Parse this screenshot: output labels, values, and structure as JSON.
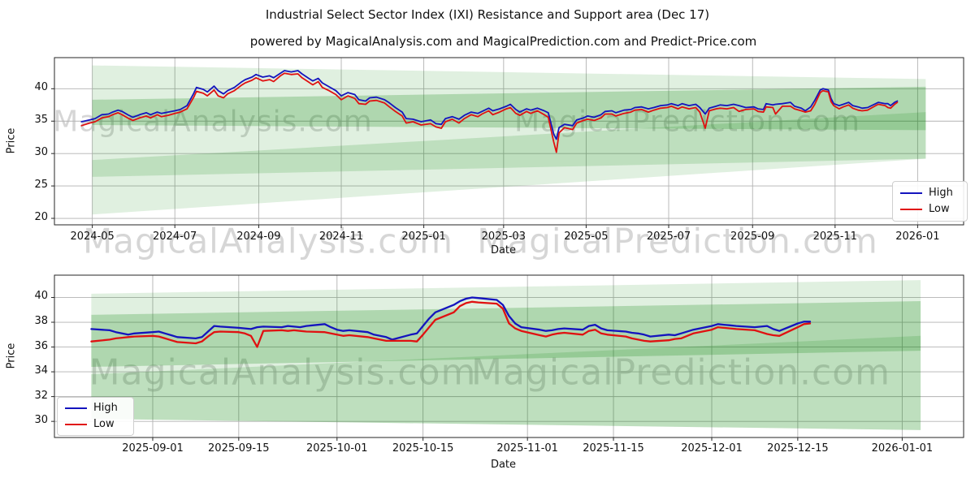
{
  "title": "Industrial Select Sector Index (IXI) Resistance and Support area (Dec 17)",
  "subtitle": "powered by MagicalAnalysis.com and MagicalPrediction.com and Predict-Price.com",
  "watermarks": {
    "analysis": "MagicalAnalysis.com",
    "prediction": "MagicalPrediction.com"
  },
  "colors": {
    "high": "#1414bE",
    "low": "#e01111",
    "band": "#008000",
    "grid": "#b2b2b2",
    "spine": "#262626",
    "watermark": "rgba(90,90,90,0.25)"
  },
  "chart_data": [
    {
      "type": "line",
      "title": "Industrial Select Sector Index (IXI) Resistance and Support area (Dec 17)",
      "xlabel": "Date",
      "ylabel": "Price",
      "legend": [
        "High",
        "Low"
      ],
      "legend_position": "center right",
      "grid": true,
      "ylim": [
        19.0,
        44.8
      ],
      "yticks": [
        20,
        25,
        30,
        35,
        40
      ],
      "xlim": [
        "2024-04-03",
        "2026-02-04"
      ],
      "xticks": [
        {
          "label": "2024-05",
          "date": "2024-05-01"
        },
        {
          "label": "2024-07",
          "date": "2024-07-01"
        },
        {
          "label": "2024-09",
          "date": "2024-09-01"
        },
        {
          "label": "2024-11",
          "date": "2024-11-01"
        },
        {
          "label": "2025-01",
          "date": "2025-01-01"
        },
        {
          "label": "2025-03",
          "date": "2025-03-01"
        },
        {
          "label": "2025-05",
          "date": "2025-05-01"
        },
        {
          "label": "2025-07",
          "date": "2025-07-01"
        },
        {
          "label": "2025-09",
          "date": "2025-09-01"
        },
        {
          "label": "2025-11",
          "date": "2025-11-01"
        },
        {
          "label": "2026-01",
          "date": "2026-01-01"
        }
      ],
      "bands": [
        {
          "x": [
            "2024-05-01",
            "2026-01-07"
          ],
          "top": [
            43.6,
            41.5
          ],
          "bottom": [
            20.6,
            29.2
          ],
          "opacity": 0.12
        },
        {
          "x": [
            "2024-05-01",
            "2026-01-07"
          ],
          "top": [
            38.3,
            40.3
          ],
          "bottom": [
            34.4,
            33.6
          ],
          "opacity": 0.22
        },
        {
          "x": [
            "2024-05-01",
            "2026-01-07"
          ],
          "top": [
            29.0,
            36.4
          ],
          "bottom": [
            26.4,
            29.2
          ],
          "opacity": 0.15
        }
      ],
      "dates": [
        "2024-04-23",
        "2024-04-29",
        "2024-05-03",
        "2024-05-08",
        "2024-05-13",
        "2024-05-16",
        "2024-05-20",
        "2024-05-23",
        "2024-05-28",
        "2024-05-31",
        "2024-06-05",
        "2024-06-10",
        "2024-06-13",
        "2024-06-18",
        "2024-06-21",
        "2024-06-26",
        "2024-07-01",
        "2024-07-05",
        "2024-07-10",
        "2024-07-15",
        "2024-07-17",
        "2024-07-22",
        "2024-07-25",
        "2024-07-30",
        "2024-08-02",
        "2024-08-06",
        "2024-08-09",
        "2024-08-14",
        "2024-08-19",
        "2024-08-22",
        "2024-08-27",
        "2024-08-30",
        "2024-09-04",
        "2024-09-09",
        "2024-09-12",
        "2024-09-17",
        "2024-09-20",
        "2024-09-25",
        "2024-09-30",
        "2024-10-03",
        "2024-10-08",
        "2024-10-11",
        "2024-10-15",
        "2024-10-18",
        "2024-10-23",
        "2024-10-28",
        "2024-11-01",
        "2024-11-06",
        "2024-11-11",
        "2024-11-14",
        "2024-11-19",
        "2024-11-22",
        "2024-11-27",
        "2024-12-03",
        "2024-12-06",
        "2024-12-11",
        "2024-12-16",
        "2024-12-19",
        "2024-12-24",
        "2024-12-30",
        "2025-01-06",
        "2025-01-10",
        "2025-01-14",
        "2025-01-17",
        "2025-01-22",
        "2025-01-27",
        "2025-01-31",
        "2025-02-05",
        "2025-02-10",
        "2025-02-13",
        "2025-02-18",
        "2025-02-21",
        "2025-02-26",
        "2025-03-03",
        "2025-03-06",
        "2025-03-10",
        "2025-03-13",
        "2025-03-18",
        "2025-03-21",
        "2025-03-26",
        "2025-03-31",
        "2025-04-03",
        "2025-04-07",
        "2025-04-09",
        "2025-04-11",
        "2025-04-15",
        "2025-04-21",
        "2025-04-24",
        "2025-04-29",
        "2025-05-02",
        "2025-05-07",
        "2025-05-12",
        "2025-05-15",
        "2025-05-20",
        "2025-05-23",
        "2025-05-29",
        "2025-06-03",
        "2025-06-06",
        "2025-06-11",
        "2025-06-16",
        "2025-06-20",
        "2025-06-25",
        "2025-06-30",
        "2025-07-03",
        "2025-07-08",
        "2025-07-11",
        "2025-07-16",
        "2025-07-21",
        "2025-07-24",
        "2025-07-28",
        "2025-07-31",
        "2025-08-05",
        "2025-08-08",
        "2025-08-13",
        "2025-08-18",
        "2025-08-22",
        "2025-08-27",
        "2025-09-02",
        "2025-09-05",
        "2025-09-09",
        "2025-09-11",
        "2025-09-16",
        "2025-09-18",
        "2025-09-23",
        "2025-09-29",
        "2025-10-02",
        "2025-10-07",
        "2025-10-10",
        "2025-10-14",
        "2025-10-17",
        "2025-10-21",
        "2025-10-23",
        "2025-10-27",
        "2025-10-29",
        "2025-10-31",
        "2025-11-04",
        "2025-11-07",
        "2025-11-11",
        "2025-11-14",
        "2025-11-18",
        "2025-11-21",
        "2025-11-25",
        "2025-12-01",
        "2025-12-03",
        "2025-12-08",
        "2025-12-10",
        "2025-12-12",
        "2025-12-15",
        "2025-12-17"
      ],
      "high": [
        34.9,
        35.2,
        35.4,
        36.0,
        36.1,
        36.4,
        36.7,
        36.5,
        35.9,
        35.6,
        36.0,
        36.3,
        36.0,
        36.4,
        36.2,
        36.4,
        36.6,
        36.8,
        37.4,
        39.3,
        40.2,
        39.9,
        39.5,
        40.4,
        39.7,
        39.2,
        39.7,
        40.2,
        41.0,
        41.4,
        41.8,
        42.2,
        41.8,
        42.0,
        41.7,
        42.4,
        42.8,
        42.6,
        42.8,
        42.3,
        41.6,
        41.2,
        41.6,
        40.9,
        40.3,
        39.7,
        38.9,
        39.4,
        39.1,
        38.3,
        38.1,
        38.6,
        38.7,
        38.3,
        37.9,
        37.1,
        36.4,
        35.4,
        35.3,
        34.9,
        35.2,
        34.6,
        34.5,
        35.4,
        35.7,
        35.3,
        35.9,
        36.4,
        36.2,
        36.5,
        37.0,
        36.6,
        36.9,
        37.3,
        37.6,
        36.8,
        36.4,
        36.9,
        36.7,
        37.0,
        36.6,
        36.3,
        33.0,
        32.2,
        34.0,
        34.5,
        34.3,
        35.2,
        35.5,
        35.8,
        35.6,
        36.0,
        36.5,
        36.6,
        36.3,
        36.7,
        36.8,
        37.1,
        37.2,
        36.9,
        37.1,
        37.4,
        37.5,
        37.7,
        37.4,
        37.7,
        37.4,
        37.6,
        37.1,
        36.1,
        37.0,
        37.3,
        37.5,
        37.4,
        37.6,
        37.4,
        37.1,
        37.2,
        36.9,
        36.8,
        37.7,
        37.5,
        37.6,
        37.7,
        37.9,
        37.3,
        37.0,
        36.6,
        37.2,
        38.2,
        39.8,
        40.0,
        39.8,
        38.5,
        37.7,
        37.4,
        37.6,
        37.9,
        37.4,
        37.2,
        37.0,
        37.1,
        37.7,
        37.9,
        37.7,
        37.7,
        37.4,
        37.9,
        38.1
      ],
      "low": [
        34.3,
        34.7,
        34.9,
        35.5,
        35.7,
        36.0,
        36.3,
        36.0,
        35.4,
        35.1,
        35.5,
        35.8,
        35.5,
        36.0,
        35.7,
        35.9,
        36.2,
        36.4,
        36.9,
        38.7,
        39.6,
        39.3,
        38.9,
        39.8,
        38.9,
        38.6,
        39.2,
        39.7,
        40.5,
        40.9,
        41.3,
        41.7,
        41.2,
        41.4,
        41.1,
        42.0,
        42.4,
        42.2,
        42.3,
        41.7,
        41.0,
        40.6,
        41.1,
        40.2,
        39.7,
        39.1,
        38.3,
        38.9,
        38.5,
        37.7,
        37.6,
        38.1,
        38.2,
        37.8,
        37.3,
        36.5,
        35.8,
        34.7,
        34.9,
        34.4,
        34.6,
        34.1,
        33.9,
        34.9,
        35.3,
        34.7,
        35.4,
        36.0,
        35.7,
        36.1,
        36.6,
        36.0,
        36.4,
        36.9,
        37.1,
        36.2,
        35.9,
        36.5,
        36.2,
        36.6,
        36.0,
        35.6,
        31.8,
        30.2,
        33.2,
        34.0,
        33.7,
        34.7,
        35.1,
        35.3,
        35.1,
        35.5,
        36.1,
        36.1,
        35.8,
        36.2,
        36.4,
        36.7,
        36.8,
        36.4,
        36.7,
        37.0,
        37.1,
        37.3,
        36.9,
        37.2,
        36.9,
        37.1,
        36.4,
        33.9,
        36.6,
        36.9,
        37.0,
        36.9,
        37.1,
        36.5,
        36.8,
        36.9,
        36.5,
        36.4,
        37.2,
        37.1,
        36.1,
        37.3,
        37.3,
        36.9,
        36.6,
        36.4,
        36.6,
        37.6,
        39.4,
        39.7,
        39.5,
        38.0,
        37.4,
        36.9,
        37.2,
        37.5,
        37.0,
        36.7,
        36.6,
        36.7,
        37.4,
        37.6,
        37.4,
        37.1,
        37.0,
        37.6,
        37.9
      ]
    },
    {
      "type": "line",
      "xlabel": "Date",
      "ylabel": "Price",
      "legend": [
        "High",
        "Low"
      ],
      "legend_position": "lower left",
      "grid": true,
      "ylim": [
        28.7,
        41.8
      ],
      "yticks": [
        30,
        32,
        34,
        36,
        38,
        40
      ],
      "xlim": [
        "2025-08-16",
        "2026-01-11"
      ],
      "xticks": [
        {
          "label": "2025-09-01",
          "date": "2025-09-01"
        },
        {
          "label": "2025-09-15",
          "date": "2025-09-15"
        },
        {
          "label": "2025-10-01",
          "date": "2025-10-01"
        },
        {
          "label": "2025-10-15",
          "date": "2025-10-15"
        },
        {
          "label": "2025-11-01",
          "date": "2025-11-01"
        },
        {
          "label": "2025-11-15",
          "date": "2025-11-15"
        },
        {
          "label": "2025-12-01",
          "date": "2025-12-01"
        },
        {
          "label": "2025-12-15",
          "date": "2025-12-15"
        },
        {
          "label": "2026-01-01",
          "date": "2026-01-01"
        }
      ],
      "bands": [
        {
          "x": [
            "2025-08-22",
            "2026-01-04"
          ],
          "top": [
            40.3,
            41.4
          ],
          "bottom": [
            30.2,
            29.3
          ],
          "opacity": 0.12
        },
        {
          "x": [
            "2025-08-22",
            "2026-01-04"
          ],
          "top": [
            38.6,
            39.7
          ],
          "bottom": [
            34.4,
            35.7
          ],
          "opacity": 0.22
        },
        {
          "x": [
            "2025-08-22",
            "2026-01-04"
          ],
          "top": [
            33.8,
            36.9
          ],
          "bottom": [
            30.2,
            29.3
          ],
          "opacity": 0.15
        }
      ],
      "dates": [
        "2025-08-22",
        "2025-08-25",
        "2025-08-26",
        "2025-08-27",
        "2025-08-28",
        "2025-08-29",
        "2025-09-01",
        "2025-09-02",
        "2025-09-03",
        "2025-09-04",
        "2025-09-05",
        "2025-09-08",
        "2025-09-09",
        "2025-09-10",
        "2025-09-11",
        "2025-09-12",
        "2025-09-15",
        "2025-09-16",
        "2025-09-17",
        "2025-09-18",
        "2025-09-19",
        "2025-09-22",
        "2025-09-23",
        "2025-09-24",
        "2025-09-25",
        "2025-09-26",
        "2025-09-29",
        "2025-09-30",
        "2025-10-01",
        "2025-10-02",
        "2025-10-03",
        "2025-10-06",
        "2025-10-07",
        "2025-10-08",
        "2025-10-09",
        "2025-10-10",
        "2025-10-13",
        "2025-10-14",
        "2025-10-15",
        "2025-10-16",
        "2025-10-17",
        "2025-10-20",
        "2025-10-21",
        "2025-10-22",
        "2025-10-23",
        "2025-10-24",
        "2025-10-27",
        "2025-10-28",
        "2025-10-29",
        "2025-10-30",
        "2025-10-31",
        "2025-11-03",
        "2025-11-04",
        "2025-11-05",
        "2025-11-06",
        "2025-11-07",
        "2025-11-10",
        "2025-11-11",
        "2025-11-12",
        "2025-11-13",
        "2025-11-14",
        "2025-11-17",
        "2025-11-18",
        "2025-11-19",
        "2025-11-20",
        "2025-11-21",
        "2025-11-24",
        "2025-11-25",
        "2025-11-26",
        "2025-11-28",
        "2025-12-01",
        "2025-12-02",
        "2025-12-03",
        "2025-12-04",
        "2025-12-05",
        "2025-12-08",
        "2025-12-09",
        "2025-12-10",
        "2025-12-11",
        "2025-12-12",
        "2025-12-15",
        "2025-12-16",
        "2025-12-17"
      ],
      "high": [
        37.45,
        37.35,
        37.2,
        37.1,
        37.0,
        37.1,
        37.2,
        37.25,
        37.1,
        36.95,
        36.8,
        36.7,
        36.8,
        37.25,
        37.7,
        37.65,
        37.55,
        37.5,
        37.45,
        37.6,
        37.65,
        37.6,
        37.7,
        37.65,
        37.6,
        37.7,
        37.85,
        37.6,
        37.4,
        37.3,
        37.35,
        37.2,
        37.0,
        36.9,
        36.8,
        36.6,
        37.0,
        37.1,
        37.7,
        38.3,
        38.8,
        39.4,
        39.7,
        39.9,
        40.0,
        39.95,
        39.8,
        39.4,
        38.5,
        37.9,
        37.6,
        37.4,
        37.3,
        37.35,
        37.45,
        37.5,
        37.4,
        37.7,
        37.8,
        37.5,
        37.35,
        37.25,
        37.15,
        37.1,
        37.0,
        36.85,
        37.0,
        36.95,
        37.1,
        37.4,
        37.7,
        37.85,
        37.8,
        37.75,
        37.7,
        37.6,
        37.65,
        37.7,
        37.45,
        37.3,
        37.9,
        38.05,
        38.05
      ],
      "low": [
        36.45,
        36.6,
        36.7,
        36.75,
        36.8,
        36.85,
        36.9,
        36.85,
        36.7,
        36.55,
        36.4,
        36.3,
        36.45,
        36.85,
        37.2,
        37.25,
        37.2,
        37.1,
        36.9,
        36.0,
        37.3,
        37.35,
        37.3,
        37.35,
        37.3,
        37.25,
        37.2,
        37.1,
        37.0,
        36.9,
        36.95,
        36.8,
        36.7,
        36.6,
        36.5,
        36.5,
        36.5,
        36.45,
        37.0,
        37.6,
        38.2,
        38.8,
        39.3,
        39.55,
        39.65,
        39.6,
        39.5,
        39.1,
        37.9,
        37.5,
        37.3,
        36.95,
        36.85,
        37.0,
        37.1,
        37.15,
        37.0,
        37.3,
        37.4,
        37.1,
        37.0,
        36.85,
        36.7,
        36.6,
        36.5,
        36.45,
        36.55,
        36.65,
        36.7,
        37.1,
        37.4,
        37.6,
        37.55,
        37.5,
        37.45,
        37.35,
        37.2,
        37.05,
        36.95,
        36.9,
        37.6,
        37.85,
        37.9
      ]
    }
  ]
}
